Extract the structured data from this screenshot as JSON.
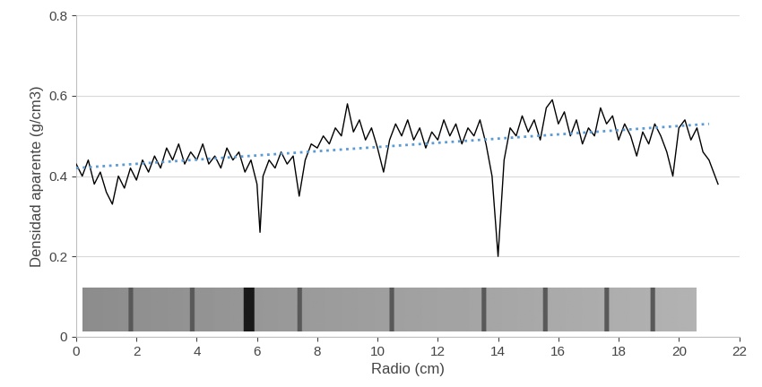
{
  "chart_data": {
    "type": "line",
    "x_label": "Radio (cm)",
    "y_label": "Densidad aparente (g/cm3)",
    "xlim": [
      0,
      22
    ],
    "xticks": [
      0,
      2,
      4,
      6,
      8,
      10,
      12,
      14,
      16,
      18,
      20,
      22
    ],
    "ylim": [
      0,
      0.8
    ],
    "yticks": [
      0,
      0.2,
      0.4,
      0.6,
      0.8
    ],
    "grid": true,
    "series": [
      {
        "color": "#000000",
        "line_style": "solid",
        "x": [
          0.0,
          0.2,
          0.4,
          0.6,
          0.8,
          1.0,
          1.2,
          1.4,
          1.6,
          1.8,
          2.0,
          2.2,
          2.4,
          2.6,
          2.8,
          3.0,
          3.2,
          3.4,
          3.6,
          3.8,
          4.0,
          4.2,
          4.4,
          4.6,
          4.8,
          5.0,
          5.2,
          5.4,
          5.6,
          5.8,
          6.0,
          6.1,
          6.2,
          6.4,
          6.6,
          6.8,
          7.0,
          7.2,
          7.4,
          7.6,
          7.8,
          8.0,
          8.2,
          8.4,
          8.6,
          8.8,
          9.0,
          9.2,
          9.4,
          9.6,
          9.8,
          10.0,
          10.2,
          10.4,
          10.6,
          10.8,
          11.0,
          11.2,
          11.4,
          11.6,
          11.8,
          12.0,
          12.2,
          12.4,
          12.6,
          12.8,
          13.0,
          13.2,
          13.4,
          13.6,
          13.8,
          14.0,
          14.2,
          14.4,
          14.6,
          14.8,
          15.0,
          15.2,
          15.4,
          15.6,
          15.8,
          16.0,
          16.2,
          16.4,
          16.6,
          16.8,
          17.0,
          17.2,
          17.4,
          17.6,
          17.8,
          18.0,
          18.2,
          18.4,
          18.6,
          18.8,
          19.0,
          19.2,
          19.4,
          19.6,
          19.8,
          20.0,
          20.2,
          20.4,
          20.6,
          20.8,
          21.0,
          21.2,
          21.3
        ],
        "values": [
          0.43,
          0.4,
          0.44,
          0.38,
          0.41,
          0.36,
          0.33,
          0.4,
          0.37,
          0.42,
          0.39,
          0.44,
          0.41,
          0.45,
          0.42,
          0.47,
          0.44,
          0.48,
          0.43,
          0.46,
          0.44,
          0.48,
          0.43,
          0.45,
          0.42,
          0.47,
          0.44,
          0.46,
          0.41,
          0.44,
          0.38,
          0.26,
          0.4,
          0.44,
          0.42,
          0.46,
          0.43,
          0.45,
          0.35,
          0.44,
          0.48,
          0.47,
          0.5,
          0.48,
          0.52,
          0.5,
          0.58,
          0.51,
          0.54,
          0.49,
          0.52,
          0.47,
          0.41,
          0.49,
          0.53,
          0.5,
          0.54,
          0.49,
          0.52,
          0.47,
          0.51,
          0.49,
          0.54,
          0.5,
          0.53,
          0.48,
          0.52,
          0.5,
          0.54,
          0.48,
          0.4,
          0.2,
          0.44,
          0.52,
          0.5,
          0.55,
          0.51,
          0.54,
          0.49,
          0.57,
          0.59,
          0.53,
          0.56,
          0.5,
          0.54,
          0.48,
          0.52,
          0.5,
          0.57,
          0.53,
          0.55,
          0.49,
          0.53,
          0.5,
          0.45,
          0.51,
          0.48,
          0.53,
          0.5,
          0.46,
          0.4,
          0.52,
          0.54,
          0.49,
          0.52,
          0.46,
          0.44,
          0.4,
          0.38
        ]
      },
      {
        "color": "#5b9bd5",
        "line_style": "dotted",
        "x": [
          0,
          21
        ],
        "values": [
          0.42,
          0.53
        ]
      }
    ]
  }
}
